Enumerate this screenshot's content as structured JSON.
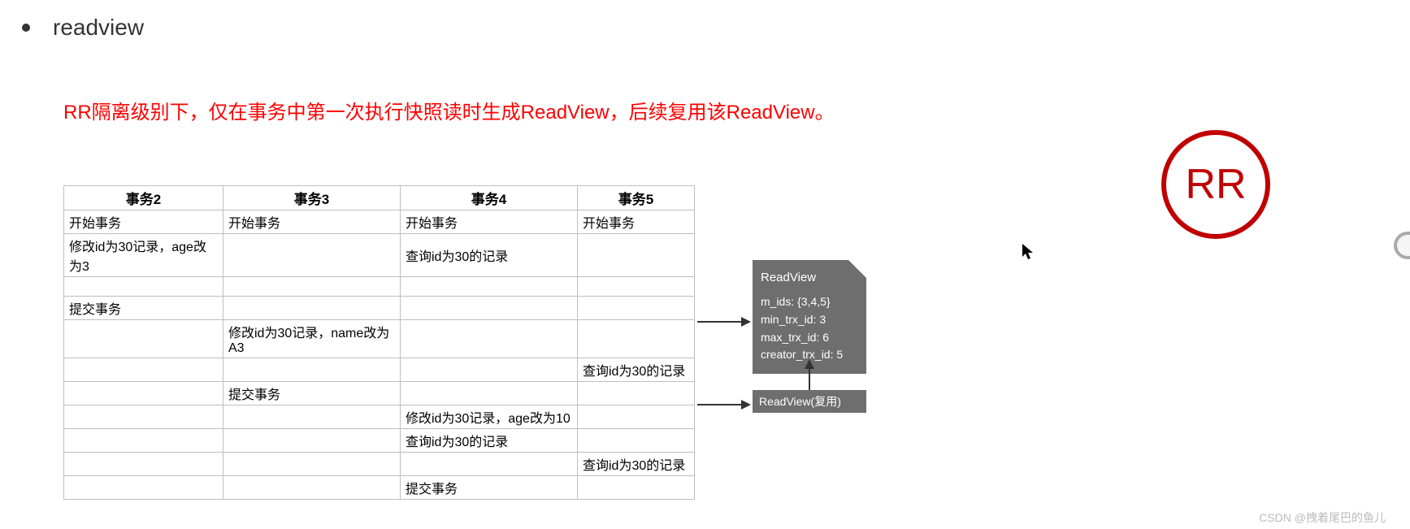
{
  "header": {
    "title": "readview"
  },
  "statement": "RR隔离级别下，仅在事务中第一次执行快照读时生成ReadView，后续复用该ReadView。",
  "table": {
    "columns": [
      "事务2",
      "事务3",
      "事务4",
      "事务5"
    ],
    "rows": [
      [
        "开始事务",
        "开始事务",
        "开始事务",
        "开始事务"
      ],
      [
        "修改id为30记录，age改为3",
        "",
        "查询id为30的记录",
        ""
      ],
      [
        "",
        "",
        "",
        ""
      ],
      [
        "提交事务",
        "",
        "",
        ""
      ],
      [
        "",
        "修改id为30记录，name改为A3",
        "",
        ""
      ],
      [
        "",
        "",
        "",
        "查询id为30的记录"
      ],
      [
        "",
        "提交事务",
        "",
        ""
      ],
      [
        "",
        "",
        "修改id为30记录，age改为10",
        ""
      ],
      [
        "",
        "",
        "查询id为30的记录",
        ""
      ],
      [
        "",
        "",
        "",
        "查询id为30的记录"
      ],
      [
        "",
        "",
        "提交事务",
        ""
      ]
    ]
  },
  "readview": {
    "title": "ReadView",
    "m_ids": "m_ids: {3,4,5}",
    "min_trx": "min_trx_id: 3",
    "max_trx": "max_trx_id: 6",
    "creator": "creator_trx_id: 5"
  },
  "reuse_label": "ReadView(复用)",
  "badge": "RR",
  "watermark": "CSDN @拽着尾巴的鱼儿",
  "colors": {
    "statement": "#ff0000",
    "box_bg": "#6e6e6e",
    "box_text": "#ffffff",
    "border": "#bfbfbf",
    "badge": "#c00000",
    "arrow": "#333333"
  }
}
